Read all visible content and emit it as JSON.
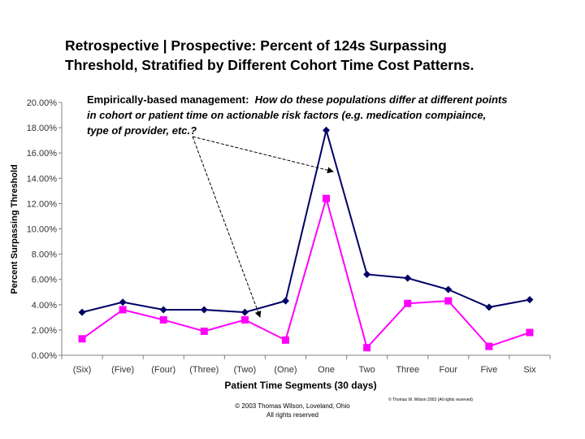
{
  "title_line1": "Retrospective | Prospective: Percent of 124s Surpassing",
  "title_line2": "Threshold, Stratified by Different Cohort Time Cost Patterns.",
  "annotation": {
    "lead": "Empirically-based management:",
    "body": "How do these populations differ at different points in cohort or patient time on actionable risk factors (e.g. medication compiaince, type of provider, etc.?"
  },
  "copyright_main_line1": "© 2003 Thomas Wilson, Loveland, Ohio",
  "copyright_main_line2": "All rights reserved",
  "copyright_small": "© Thomas W. Wilson 2003 (All rights reserved)",
  "colors": {
    "series_top": "#000066",
    "series_bottom": "#ff00ff",
    "arrow": "#000000",
    "axis": "#808080"
  },
  "chart_data": {
    "type": "line",
    "xlabel": "Patient Time Segments (30 days)",
    "ylabel": "Percent Surpassing Threshold",
    "categories": [
      "(Six)",
      "(Five)",
      "(Four)",
      "(Three)",
      "(Two)",
      "(One)",
      "One",
      "Two",
      "Three",
      "Four",
      "Five",
      "Six"
    ],
    "yticks": [
      "0.00%",
      "2.00%",
      "4.00%",
      "6.00%",
      "8.00%",
      "10.00%",
      "12.00%",
      "14.00%",
      "16.00%",
      "18.00%",
      "20.00%"
    ],
    "ylim": [
      0,
      20
    ],
    "grid": false,
    "legend": "none",
    "series": [
      {
        "marker": "diamond",
        "values": [
          3.4,
          4.2,
          3.6,
          3.6,
          3.4,
          4.3,
          17.8,
          6.4,
          6.1,
          5.2,
          3.8,
          4.4
        ]
      },
      {
        "marker": "square",
        "values": [
          1.3,
          3.6,
          2.8,
          1.9,
          2.8,
          1.2,
          12.4,
          0.6,
          4.1,
          4.3,
          0.7,
          1.8
        ]
      }
    ]
  }
}
